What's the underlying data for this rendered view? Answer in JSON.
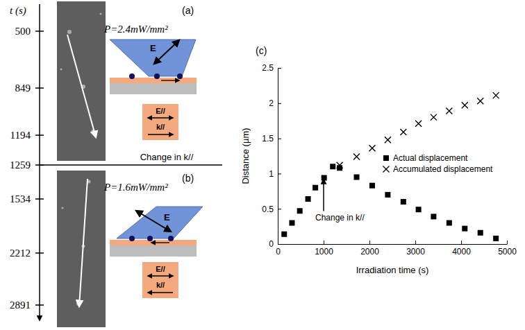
{
  "panels": {
    "time_axis": {
      "label": "t (s)",
      "ticks": [
        500,
        849,
        1194,
        1259,
        1534,
        2212,
        2891
      ]
    },
    "a": {
      "letter": "(a)",
      "power": "P=2.4mW/mm²",
      "field": "E",
      "field_parallel": "E//",
      "k_parallel": "k//"
    },
    "separator": "Change in k//",
    "b": {
      "letter": "(b)",
      "power": "P=1.6mW/mm²",
      "field": "E",
      "field_parallel": "E//",
      "k_parallel": "k//"
    }
  },
  "chart_data": {
    "type": "scatter",
    "letter": "(c)",
    "x_label": "Irradiation time (s)",
    "y_label": "Distance (µm)",
    "xlim": [
      0,
      5000
    ],
    "ylim": [
      0,
      2.5
    ],
    "xticks": [
      0,
      1000,
      2000,
      3000,
      4000,
      5000
    ],
    "yticks": [
      0,
      0.5,
      1,
      1.5,
      2,
      2.5
    ],
    "legend": "right",
    "series": [
      {
        "name": "Actual displacement",
        "color": "#000000",
        "marker": "square",
        "x": [
          140,
          310,
          480,
          660,
          820,
          1010,
          1200,
          1350,
          1720,
          2060,
          2400,
          2740,
          3070,
          3400,
          3740,
          4080,
          4420,
          4760
        ],
        "values": [
          0.14,
          0.3,
          0.47,
          0.64,
          0.8,
          0.94,
          1.1,
          1.08,
          0.95,
          0.83,
          0.7,
          0.6,
          0.49,
          0.39,
          0.3,
          0.22,
          0.16,
          0.08
        ]
      },
      {
        "name": "Accumulated displacement",
        "color": "#000000",
        "marker": "x",
        "x": [
          1350,
          1720,
          2060,
          2400,
          2740,
          3070,
          3400,
          3740,
          4080,
          4420,
          4760
        ],
        "values": [
          1.12,
          1.24,
          1.36,
          1.48,
          1.59,
          1.71,
          1.8,
          1.89,
          1.97,
          2.03,
          2.11
        ]
      }
    ],
    "annotations": [
      {
        "text": "Change in k//",
        "x": 1000,
        "y": 0.98
      }
    ]
  }
}
